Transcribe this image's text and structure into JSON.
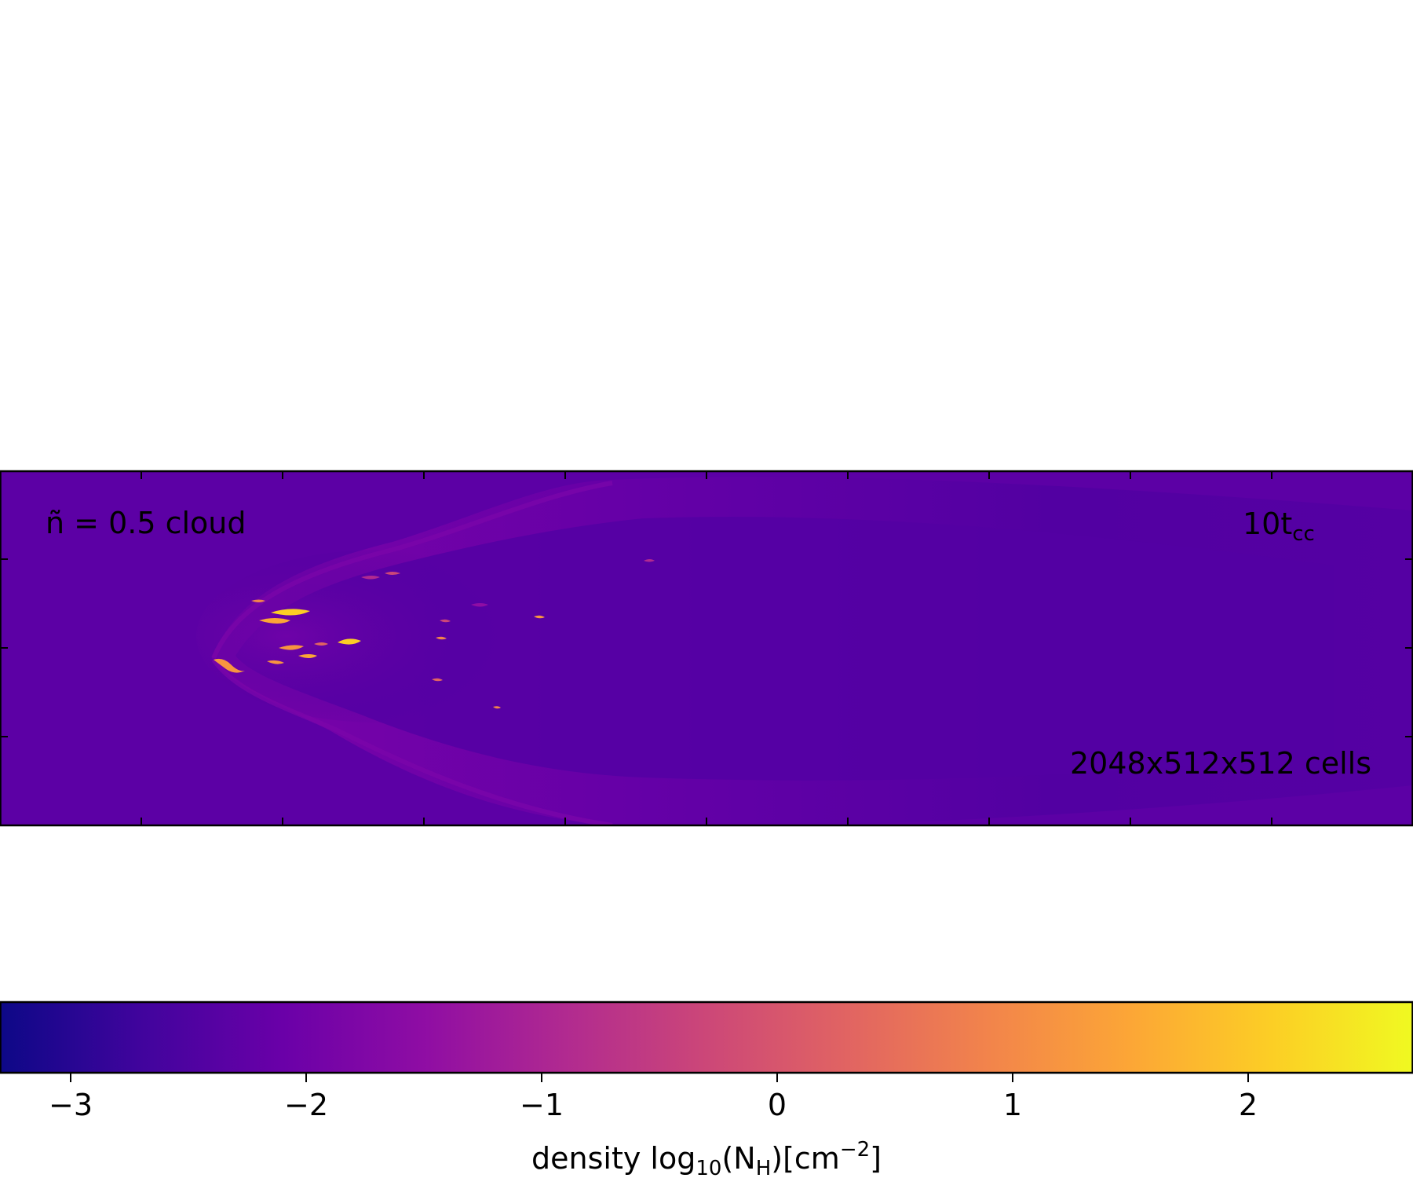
{
  "panel": {
    "label_prefix": "ñ = 0.5 cloud",
    "time_main": "10t",
    "time_sub": "cc",
    "resolution": "2048x512x512 cells"
  },
  "colorbar": {
    "ticks": [
      "−3",
      "−2",
      "−1",
      "0",
      "1",
      "2"
    ],
    "tick_values": [
      -3,
      -2,
      -1,
      0,
      1,
      2
    ],
    "range": [
      -3.3,
      2.7
    ],
    "label_pre": "density log",
    "label_sub1": "10",
    "label_mid": "(N",
    "label_sub2": "H",
    "label_post": ")[cm",
    "label_sup": "−2",
    "label_end": "]",
    "colormap": "plasma",
    "colors": [
      "#0d0887",
      "#41049d",
      "#6a00a8",
      "#8f0da4",
      "#b12a90",
      "#cc4778",
      "#e16462",
      "#f2844b",
      "#fca636",
      "#fcce25",
      "#f0f921"
    ]
  },
  "image": {
    "background": "#5c00a5",
    "plume_color": "#7000aa",
    "plume_dark": "#4b00a0",
    "clump_colors": [
      "#fca636",
      "#f89540",
      "#fcce25",
      "#e16462"
    ]
  }
}
